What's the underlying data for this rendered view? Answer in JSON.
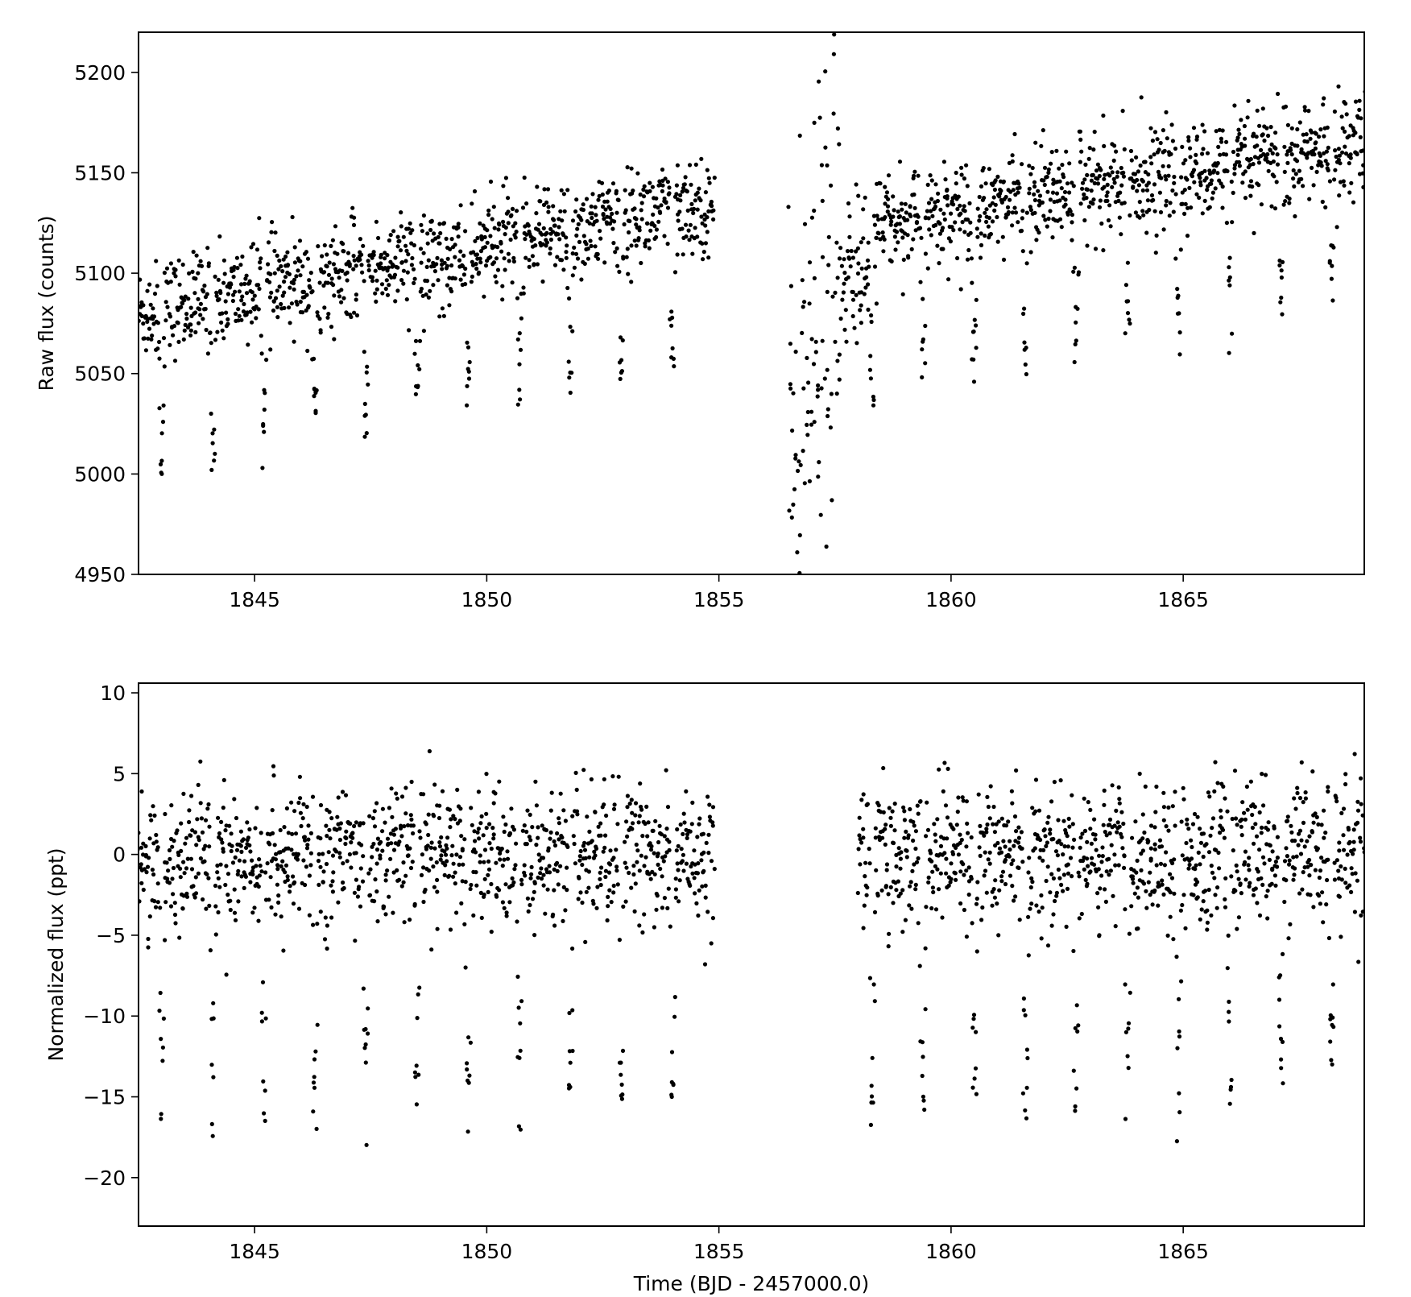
{
  "chart_data": [
    {
      "type": "scatter",
      "ylabel": "Raw flux (counts)",
      "xlabel": "",
      "xlim": [
        1842.5,
        1868.9
      ],
      "ylim": [
        4950,
        5220
      ],
      "xticks": [
        1845,
        1850,
        1855,
        1860,
        1865
      ],
      "yticks": [
        4950,
        5000,
        5050,
        5100,
        5150,
        5200
      ],
      "grid": false,
      "marker_color": "#000000",
      "segments": [
        {
          "start": 1842.5,
          "end": 1854.9,
          "baseline_start": 5080,
          "baseline_end": 5135,
          "scatter": 12
        },
        {
          "start": 1856.5,
          "end": 1857.6,
          "baseline_start": 4990,
          "baseline_end": 5120,
          "scatter": 70
        },
        {
          "start": 1857.6,
          "end": 1858.4,
          "baseline_start": 5085,
          "baseline_end": 5120,
          "scatter": 20
        },
        {
          "start": 1858.4,
          "end": 1868.9,
          "baseline_start": 5125,
          "baseline_end": 5165,
          "scatter": 12
        }
      ],
      "transit_times": [
        1843.0,
        1844.1,
        1845.2,
        1846.3,
        1847.4,
        1848.5,
        1849.6,
        1850.7,
        1851.8,
        1852.9,
        1854.0,
        1858.3,
        1859.4,
        1860.5,
        1861.6,
        1862.7,
        1863.8,
        1864.9,
        1866.0,
        1867.1,
        1868.2
      ],
      "transit_depth": 75,
      "transit_duration": 0.12
    },
    {
      "type": "scatter",
      "ylabel": "Normalized flux (ppt)",
      "xlabel": "Time (BJD - 2457000.0)",
      "xlim": [
        1842.5,
        1868.9
      ],
      "ylim": [
        -23,
        10.6
      ],
      "xticks": [
        1845,
        1850,
        1855,
        1860,
        1865
      ],
      "yticks": [
        10,
        5,
        0,
        -5,
        -10,
        -15,
        -20
      ],
      "grid": false,
      "marker_color": "#000000",
      "segments": [
        {
          "start": 1842.5,
          "end": 1854.9,
          "baseline_start": 0,
          "baseline_end": 0,
          "scatter": 2.2
        },
        {
          "start": 1858.0,
          "end": 1868.9,
          "baseline_start": 0,
          "baseline_end": 0,
          "scatter": 2.2
        }
      ],
      "transit_times": [
        1843.0,
        1844.1,
        1845.2,
        1846.3,
        1847.4,
        1848.5,
        1849.6,
        1850.7,
        1851.8,
        1852.9,
        1854.0,
        1858.3,
        1859.4,
        1860.5,
        1861.6,
        1862.7,
        1863.8,
        1864.9,
        1866.0,
        1867.1,
        1868.2
      ],
      "transit_depth": 15,
      "transit_duration": 0.12
    }
  ]
}
